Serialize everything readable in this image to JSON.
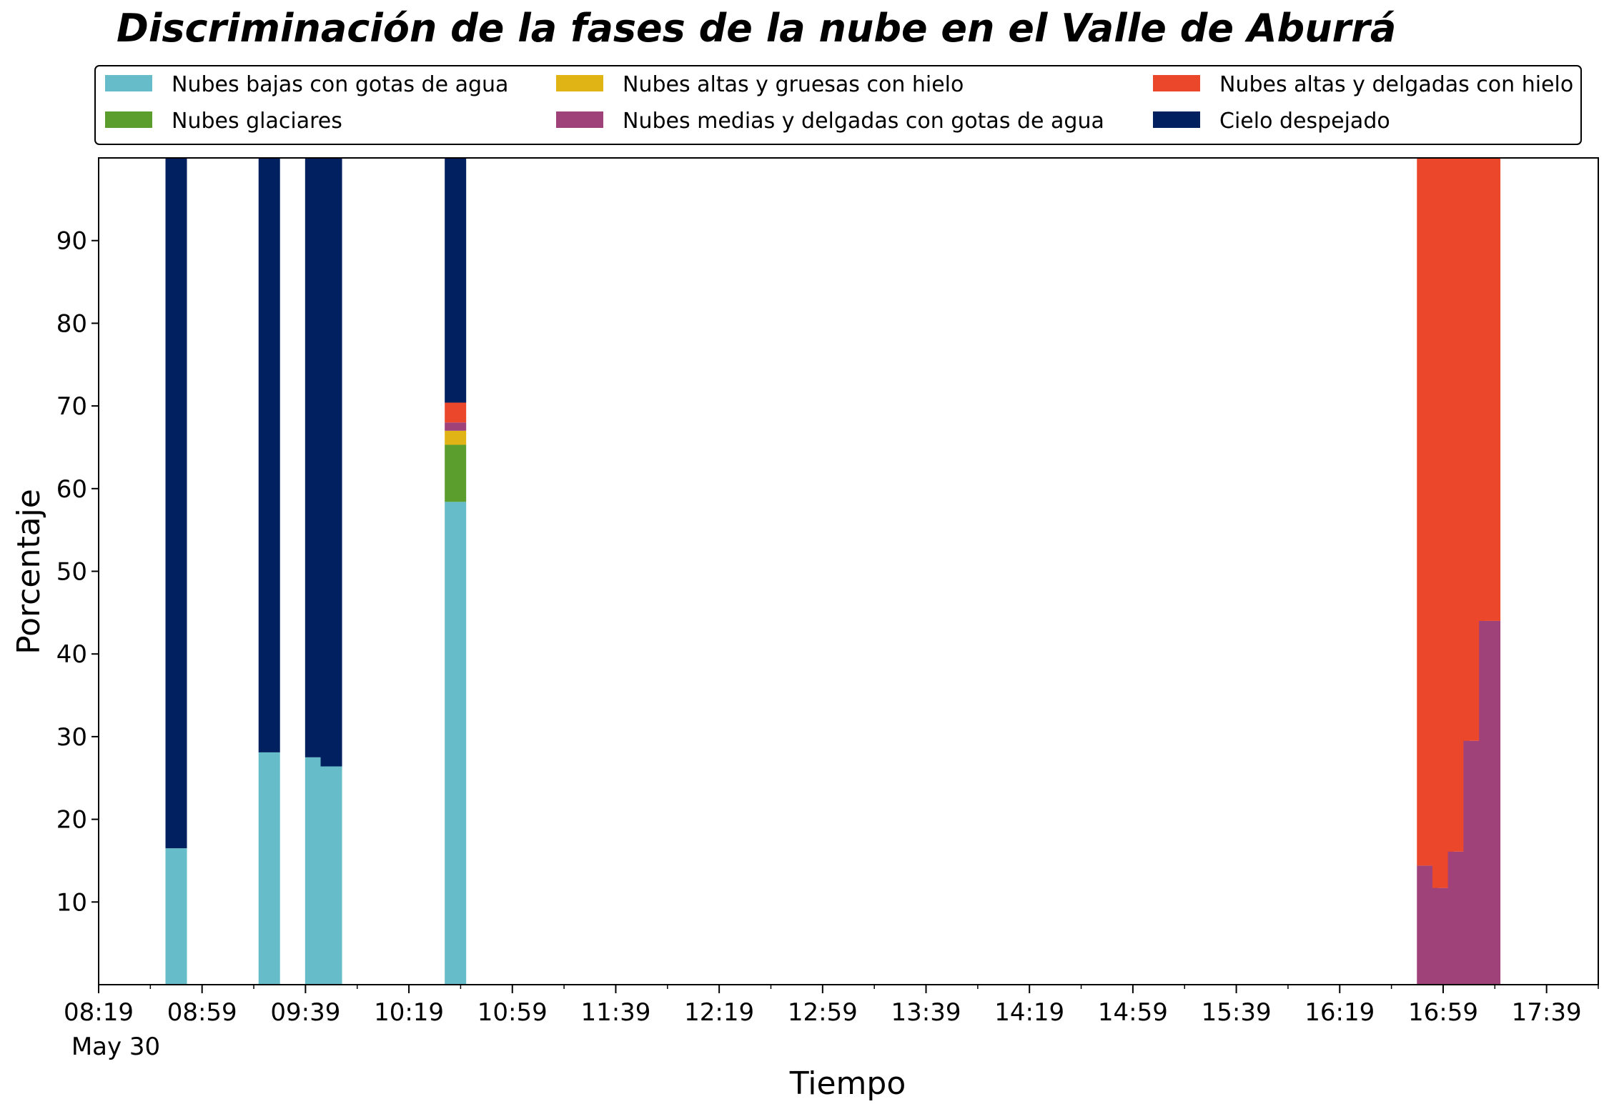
{
  "chart_data": {
    "type": "bar",
    "stacked": true,
    "title": "Discriminación de la fases de la nube en el Valle de Aburrá",
    "xlabel": "Tiempo",
    "ylabel": "Porcentaje",
    "ylim": [
      0,
      100
    ],
    "yticks": [
      10,
      20,
      30,
      40,
      50,
      60,
      70,
      80,
      90
    ],
    "xlim": [
      "08:19",
      "17:59"
    ],
    "xticks": [
      "08:19",
      "08:59",
      "09:39",
      "10:19",
      "10:59",
      "11:39",
      "12:19",
      "12:59",
      "13:39",
      "14:19",
      "14:59",
      "15:39",
      "16:19",
      "16:59",
      "17:39"
    ],
    "x_date_label": "May 30",
    "grid": false,
    "legend_position": "top",
    "categories": [
      "08:49",
      "09:25",
      "09:43",
      "09:49",
      "10:37",
      "16:53",
      "16:59",
      "17:05",
      "17:11",
      "17:17"
    ],
    "series": [
      {
        "name": "Nubes bajas con gotas de agua",
        "color": "#66bcc9",
        "values": [
          16.5,
          28.1,
          27.5,
          26.4,
          58.4,
          0,
          0,
          0,
          0,
          0
        ]
      },
      {
        "name": "Nubes glaciares",
        "color": "#5c9e2e",
        "values": [
          0,
          0,
          0,
          0,
          6.9,
          0,
          0,
          0,
          0,
          0
        ]
      },
      {
        "name": "Nubes altas y gruesas con hielo",
        "color": "#e0b414",
        "values": [
          0,
          0,
          0,
          0,
          1.7,
          0,
          0,
          0,
          0,
          0
        ]
      },
      {
        "name": "Nubes medias y delgadas con gotas de agua",
        "color": "#a0427a",
        "values": [
          0,
          0,
          0,
          0,
          1.0,
          14.4,
          11.7,
          16.1,
          29.5,
          44.0
        ]
      },
      {
        "name": "Nubes altas y delgadas con hielo",
        "color": "#eb472b",
        "values": [
          0,
          0,
          0,
          0,
          2.4,
          85.6,
          88.3,
          83.9,
          70.5,
          56.0
        ]
      },
      {
        "name": "Cielo despejado",
        "color": "#002060",
        "values": [
          83.5,
          71.9,
          72.5,
          73.6,
          29.6,
          0,
          0,
          0,
          0,
          0
        ]
      }
    ]
  }
}
